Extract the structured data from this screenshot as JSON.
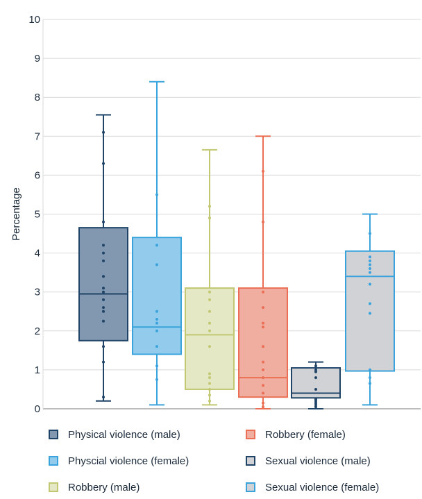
{
  "chart_data": {
    "type": "box",
    "ylabel": "Percentage",
    "ylim": [
      0,
      10
    ],
    "yticks": [
      0,
      1,
      2,
      3,
      4,
      5,
      6,
      7,
      8,
      9,
      10
    ],
    "grid": "horizontal",
    "legend_position": "bottom",
    "series": [
      {
        "name": "Physical violence (male)",
        "fill": "#8298b0",
        "stroke": "#1f4468",
        "point": "#1f4468",
        "min": 0.2,
        "q1": 1.75,
        "median": 2.95,
        "q3": 4.65,
        "max": 7.55,
        "points": [
          0.3,
          1.2,
          1.6,
          2.25,
          2.5,
          2.6,
          2.8,
          3.0,
          3.1,
          3.4,
          3.8,
          4.0,
          4.2,
          4.8,
          6.3,
          7.1
        ]
      },
      {
        "name": "Physcial violence (female)",
        "fill": "#93cbec",
        "stroke": "#3ba3dc",
        "point": "#3ba3dc",
        "min": 0.1,
        "q1": 1.4,
        "median": 2.1,
        "q3": 4.4,
        "max": 8.4,
        "points": [
          0.75,
          1.1,
          1.6,
          2.0,
          2.2,
          2.3,
          2.5,
          3.7,
          4.2,
          5.5
        ]
      },
      {
        "name": "Robbery (male)",
        "fill": "#e4e8c4",
        "stroke": "#c2c872",
        "point": "#c2c872",
        "min": 0.1,
        "q1": 0.5,
        "median": 1.9,
        "q3": 3.1,
        "max": 6.65,
        "points": [
          0.2,
          0.35,
          0.5,
          0.65,
          0.8,
          0.9,
          1.6,
          2.0,
          2.2,
          2.5,
          2.8,
          3.0,
          4.9,
          5.2
        ]
      },
      {
        "name": "Robbery (female)",
        "fill": "#f0aea0",
        "stroke": "#ea6f55",
        "point": "#ea6f55",
        "min": 0.0,
        "q1": 0.3,
        "median": 0.8,
        "q3": 3.1,
        "max": 7.0,
        "points": [
          0.05,
          0.15,
          0.4,
          0.6,
          0.8,
          1.0,
          1.2,
          1.6,
          2.1,
          2.2,
          2.6,
          3.0,
          4.8,
          6.1
        ]
      },
      {
        "name": "Sexual violence (male)",
        "fill": "#d0d2d6",
        "stroke": "#1f4468",
        "point": "#1f4468",
        "min": 0.0,
        "q1": 0.28,
        "median": 0.4,
        "q3": 1.05,
        "max": 1.2,
        "points": [
          0.05,
          0.1,
          0.15,
          0.2,
          0.25,
          0.5,
          0.8,
          0.95,
          1.0,
          1.1
        ]
      },
      {
        "name": "Sexual violence (female)",
        "fill": "#d0d2d6",
        "stroke": "#3ba3dc",
        "point": "#3ba3dc",
        "min": 0.1,
        "q1": 0.97,
        "median": 3.4,
        "q3": 4.05,
        "max": 5.0,
        "points": [
          0.65,
          0.8,
          1.0,
          2.45,
          2.7,
          3.2,
          3.5,
          3.6,
          3.7,
          3.8,
          3.9,
          4.5
        ]
      }
    ]
  }
}
